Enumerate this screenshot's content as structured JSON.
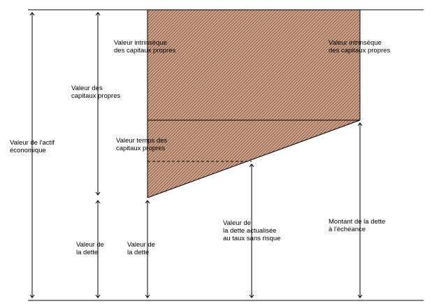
{
  "colors": {
    "hatch_fill": "#c8a98c",
    "hatch_line": "#7a1f1f",
    "line": "#000000",
    "background": "#ffffff"
  },
  "labels": {
    "actif": [
      "Valeur de l'actif",
      "économique"
    ],
    "capitaux": [
      "Valeur des",
      "capitaux propres"
    ],
    "dette_left": [
      "Valeur de",
      "la dette"
    ],
    "dette_mid": [
      "Valeur de",
      "la dette"
    ],
    "intrinseque_left": [
      "Valeur intrinsèque",
      "des capitaux propres"
    ],
    "intrinseque_right": [
      "Valeur intrinsèque",
      "des capitaux propres"
    ],
    "temps": [
      "Valeur temps des",
      "capitaux propres"
    ],
    "dette_actualisee": [
      "Valeur de",
      "la dette actualisée",
      "au taux sans risque"
    ],
    "montant_dette": [
      "Montant de la dette",
      "à l'échéance"
    ]
  }
}
